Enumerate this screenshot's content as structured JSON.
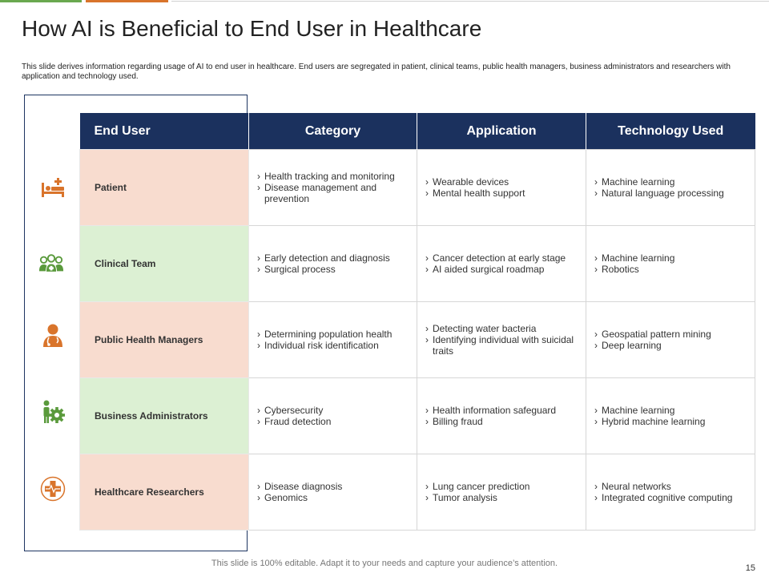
{
  "title": "How AI is Beneficial to End User in Healthcare",
  "description": "This slide derives information regarding usage of AI to end user in healthcare. End users are segregated in patient, clinical teams, public health managers, business administrators and researchers with application and technology used.",
  "table": {
    "headers": [
      "End User",
      "Category",
      "Application",
      "Technology Used"
    ],
    "rows": [
      {
        "user": "Patient",
        "icon": "hospital-bed-icon",
        "category": [
          "Health tracking and monitoring",
          "Disease management and prevention"
        ],
        "application": [
          "Wearable devices",
          "Mental health support"
        ],
        "technology": [
          "Machine learning",
          "Natural language processing"
        ]
      },
      {
        "user": "Clinical Team",
        "icon": "medical-team-icon",
        "category": [
          "Early detection and diagnosis",
          "Surgical process"
        ],
        "application": [
          "Cancer detection at early stage",
          " AI aided surgical roadmap"
        ],
        "technology": [
          "Machine learning",
          "Robotics"
        ]
      },
      {
        "user": "Public Health Managers",
        "icon": "doctor-icon",
        "category": [
          "Determining population health",
          "Individual risk identification"
        ],
        "application": [
          "Detecting water bacteria",
          "Identifying individual with suicidal traits"
        ],
        "technology": [
          "Geospatial pattern mining",
          "Deep learning"
        ]
      },
      {
        "user": "Business Administrators",
        "icon": "admin-gear-icon",
        "category": [
          "Cybersecurity",
          "Fraud detection"
        ],
        "application": [
          "Health information safeguard",
          "Billing fraud"
        ],
        "technology": [
          "Machine learning",
          "Hybrid machine learning"
        ]
      },
      {
        "user": "Healthcare Researchers",
        "icon": "medical-cross-icon",
        "category": [
          "Disease diagnosis",
          "Genomics"
        ],
        "application": [
          "Lung cancer prediction",
          " Tumor analysis"
        ],
        "technology": [
          "Neural networks",
          "Integrated cognitive computing"
        ]
      }
    ]
  },
  "footer": "This slide is 100% editable. Adapt it to your needs and capture your audience’s attention.",
  "page_number": "15",
  "colors": {
    "header_bg": "#1b315e",
    "peach": "#f8dccf",
    "mint": "#dcf0d3",
    "orange_icon": "#d9742b",
    "green_icon": "#5a9a3c"
  }
}
